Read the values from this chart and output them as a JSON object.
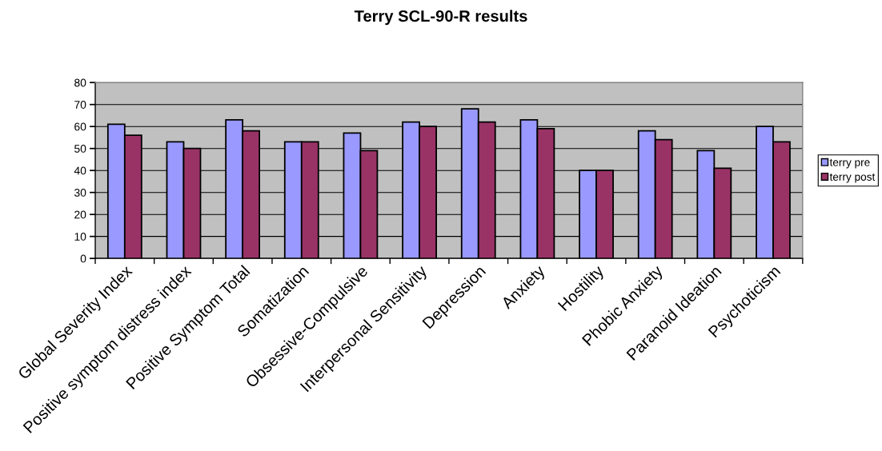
{
  "chart_data": {
    "type": "bar",
    "title": "Terry SCL-90-R results",
    "categories": [
      "Global Severity Index",
      "Positive symptom distress index",
      "Positive Symptom Total",
      "Somatization",
      "Obsessive-Compulsive",
      "Interpersonal Sensitivity",
      "Depression",
      "Anxiety",
      "Hostility",
      "Phobic Anxiety",
      "Paranoid Ideation",
      "Psychoticism"
    ],
    "series": [
      {
        "name": "terry pre",
        "color": "#9999ff",
        "values": [
          61,
          53,
          63,
          53,
          57,
          62,
          68,
          63,
          40,
          58,
          49,
          60
        ]
      },
      {
        "name": "terry post",
        "color": "#993366",
        "values": [
          56,
          50,
          58,
          53,
          49,
          60,
          62,
          59,
          40,
          54,
          41,
          53
        ]
      }
    ],
    "ylim": [
      0,
      80
    ],
    "yticks": [
      0,
      10,
      20,
      30,
      40,
      50,
      60,
      70,
      80
    ],
    "grid": "y",
    "legend": "right"
  }
}
